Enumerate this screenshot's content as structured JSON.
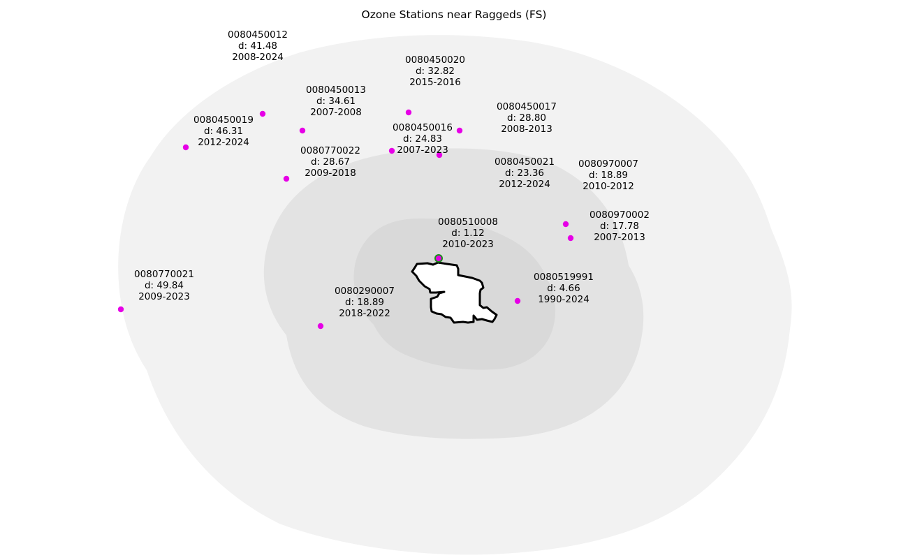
{
  "map": {
    "title": "Ozone Stations near Raggeds (FS)",
    "area_name": "Raggeds (FS)",
    "colors": {
      "buffer_outer": "#f2f2f2",
      "buffer_middle": "#e3e3e3",
      "buffer_inner": "#d9d9d9",
      "area_fill": "#ffffff",
      "area_outline": "#000000",
      "station_marker": "#e600e6",
      "nearest_marker_ring": "#1a8f1a"
    },
    "stations": [
      {
        "id": "0080450012",
        "distance": "d: 41.48",
        "years": "2008-2024"
      },
      {
        "id": "0080450020",
        "distance": "d: 32.82",
        "years": "2015-2016"
      },
      {
        "id": "0080450013",
        "distance": "d: 34.61",
        "years": "2007-2008"
      },
      {
        "id": "0080450017",
        "distance": "d: 28.80",
        "years": "2008-2013"
      },
      {
        "id": "0080450019",
        "distance": "d: 46.31",
        "years": "2012-2024"
      },
      {
        "id": "0080450016",
        "distance": "d: 24.83",
        "years": "2007-2023"
      },
      {
        "id": "0080770022",
        "distance": "d: 28.67",
        "years": "2009-2018"
      },
      {
        "id": "0080450021",
        "distance": "d: 23.36",
        "years": "2012-2024"
      },
      {
        "id": "0080970007",
        "distance": "d: 18.89",
        "years": "2010-2012"
      },
      {
        "id": "0080970002",
        "distance": "d: 17.78",
        "years": "2007-2013"
      },
      {
        "id": "0080510008",
        "distance": "d: 1.12",
        "years": "2010-2023",
        "nearest": true
      },
      {
        "id": "0080519991",
        "distance": "d: 4.66",
        "years": "1990-2024"
      },
      {
        "id": "0080770021",
        "distance": "d: 49.84",
        "years": "2009-2023"
      },
      {
        "id": "0080290007",
        "distance": "d: 18.89",
        "years": "2018-2022"
      }
    ]
  }
}
